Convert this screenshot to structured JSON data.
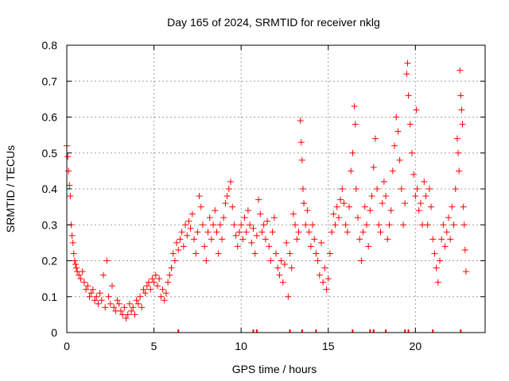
{
  "chart_data": {
    "type": "scatter",
    "title": "Day 165 of 2024, SRMTID for receiver nklg",
    "xlabel": "GPS time / hours",
    "ylabel": "SRMTID / TECUs",
    "xlim": [
      0,
      24
    ],
    "ylim": [
      0,
      0.8
    ],
    "x_ticks": [
      0,
      5,
      10,
      15,
      20
    ],
    "x_tick_labels": [
      "0",
      "5",
      "10",
      "15",
      "20"
    ],
    "y_ticks": [
      0,
      0.1,
      0.2,
      0.3,
      0.4,
      0.5,
      0.6,
      0.7,
      0.8
    ],
    "y_tick_labels": [
      "0",
      "0.1",
      "0.2",
      "0.3",
      "0.4",
      "0.5",
      "0.6",
      "0.7",
      "0.8"
    ],
    "grid": true,
    "marker": "+",
    "color": "#ff0000",
    "series": [
      {
        "name": "SRMTID",
        "points": [
          [
            0.0,
            0.52
          ],
          [
            0.05,
            0.49
          ],
          [
            0.1,
            0.45
          ],
          [
            0.15,
            0.41
          ],
          [
            0.2,
            0.38
          ],
          [
            0.25,
            0.3
          ],
          [
            0.3,
            0.27
          ],
          [
            0.35,
            0.25
          ],
          [
            0.4,
            0.22
          ],
          [
            0.45,
            0.2
          ],
          [
            0.5,
            0.19
          ],
          [
            0.55,
            0.18
          ],
          [
            0.6,
            0.17
          ],
          [
            0.7,
            0.16
          ],
          [
            0.8,
            0.15
          ],
          [
            0.9,
            0.17
          ],
          [
            1.0,
            0.14
          ],
          [
            1.1,
            0.12
          ],
          [
            1.2,
            0.13
          ],
          [
            1.3,
            0.1
          ],
          [
            1.4,
            0.11
          ],
          [
            1.5,
            0.12
          ],
          [
            1.6,
            0.09
          ],
          [
            1.7,
            0.1
          ],
          [
            1.8,
            0.08
          ],
          [
            1.9,
            0.11
          ],
          [
            2.0,
            0.09
          ],
          [
            2.1,
            0.16
          ],
          [
            2.2,
            0.07
          ],
          [
            2.3,
            0.2
          ],
          [
            2.4,
            0.1
          ],
          [
            2.5,
            0.08
          ],
          [
            2.6,
            0.13
          ],
          [
            2.7,
            0.07
          ],
          [
            2.8,
            0.06
          ],
          [
            2.9,
            0.09
          ],
          [
            3.0,
            0.08
          ],
          [
            3.1,
            0.06
          ],
          [
            3.2,
            0.05
          ],
          [
            3.3,
            0.07
          ],
          [
            3.4,
            0.04
          ],
          [
            3.5,
            0.05
          ],
          [
            3.6,
            0.08
          ],
          [
            3.7,
            0.06
          ],
          [
            3.8,
            0.07
          ],
          [
            3.9,
            0.05
          ],
          [
            4.0,
            0.09
          ],
          [
            4.1,
            0.08
          ],
          [
            4.2,
            0.1
          ],
          [
            4.3,
            0.07
          ],
          [
            4.4,
            0.12
          ],
          [
            4.5,
            0.11
          ],
          [
            4.6,
            0.13
          ],
          [
            4.7,
            0.14
          ],
          [
            4.8,
            0.12
          ],
          [
            4.9,
            0.15
          ],
          [
            5.0,
            0.14
          ],
          [
            5.1,
            0.16
          ],
          [
            5.2,
            0.13
          ],
          [
            5.3,
            0.15
          ],
          [
            5.4,
            0.1
          ],
          [
            5.5,
            0.12
          ],
          [
            5.6,
            0.09
          ],
          [
            5.7,
            0.11
          ],
          [
            5.8,
            0.14
          ],
          [
            5.9,
            0.16
          ],
          [
            6.0,
            0.18
          ],
          [
            6.1,
            0.22
          ],
          [
            6.2,
            0.2
          ],
          [
            6.3,
            0.25
          ],
          [
            6.4,
            0.23
          ],
          [
            6.5,
            0.26
          ],
          [
            6.6,
            0.28
          ],
          [
            6.7,
            0.24
          ],
          [
            6.8,
            0.3
          ],
          [
            6.9,
            0.27
          ],
          [
            7.0,
            0.31
          ],
          [
            7.1,
            0.29
          ],
          [
            7.2,
            0.33
          ],
          [
            7.3,
            0.26
          ],
          [
            7.4,
            0.22
          ],
          [
            7.5,
            0.28
          ],
          [
            7.6,
            0.38
          ],
          [
            7.7,
            0.35
          ],
          [
            7.8,
            0.3
          ],
          [
            7.9,
            0.24
          ],
          [
            8.0,
            0.2
          ],
          [
            8.1,
            0.28
          ],
          [
            8.2,
            0.32
          ],
          [
            8.3,
            0.26
          ],
          [
            8.4,
            0.3
          ],
          [
            8.5,
            0.34
          ],
          [
            8.6,
            0.28
          ],
          [
            8.7,
            0.22
          ],
          [
            8.8,
            0.3
          ],
          [
            8.9,
            0.26
          ],
          [
            9.0,
            0.32
          ],
          [
            9.1,
            0.36
          ],
          [
            9.2,
            0.38
          ],
          [
            9.3,
            0.4
          ],
          [
            9.4,
            0.42
          ],
          [
            9.5,
            0.35
          ],
          [
            9.6,
            0.3
          ],
          [
            9.7,
            0.27
          ],
          [
            9.8,
            0.24
          ],
          [
            9.9,
            0.28
          ],
          [
            10.0,
            0.3
          ],
          [
            10.1,
            0.26
          ],
          [
            10.2,
            0.32
          ],
          [
            10.3,
            0.28
          ],
          [
            10.4,
            0.34
          ],
          [
            10.5,
            0.3
          ],
          [
            10.6,
            0.25
          ],
          [
            10.7,
            0.29
          ],
          [
            10.8,
            0.22
          ],
          [
            10.9,
            0.27
          ],
          [
            11.0,
            0.37
          ],
          [
            11.1,
            0.33
          ],
          [
            11.2,
            0.28
          ],
          [
            11.3,
            0.3
          ],
          [
            11.4,
            0.26
          ],
          [
            11.5,
            0.31
          ],
          [
            11.6,
            0.24
          ],
          [
            11.7,
            0.2
          ],
          [
            11.8,
            0.28
          ],
          [
            11.9,
            0.32
          ],
          [
            12.0,
            0.22
          ],
          [
            12.1,
            0.18
          ],
          [
            12.2,
            0.16
          ],
          [
            12.3,
            0.2
          ],
          [
            12.4,
            0.14
          ],
          [
            12.5,
            0.19
          ],
          [
            12.6,
            0.25
          ],
          [
            12.7,
            0.1
          ],
          [
            12.8,
            0.22
          ],
          [
            12.9,
            0.18
          ],
          [
            13.0,
            0.33
          ],
          [
            13.1,
            0.3
          ],
          [
            13.2,
            0.26
          ],
          [
            13.3,
            0.28
          ],
          [
            13.4,
            0.59
          ],
          [
            13.45,
            0.53
          ],
          [
            13.5,
            0.48
          ],
          [
            13.55,
            0.4
          ],
          [
            13.6,
            0.36
          ],
          [
            13.7,
            0.3
          ],
          [
            13.8,
            0.34
          ],
          [
            13.9,
            0.28
          ],
          [
            14.0,
            0.24
          ],
          [
            14.1,
            0.3
          ],
          [
            14.2,
            0.26
          ],
          [
            14.3,
            0.22
          ],
          [
            14.4,
            0.2
          ],
          [
            14.5,
            0.16
          ],
          [
            14.6,
            0.25
          ],
          [
            14.7,
            0.14
          ],
          [
            14.8,
            0.18
          ],
          [
            14.9,
            0.12
          ],
          [
            15.0,
            0.15
          ],
          [
            15.1,
            0.22
          ],
          [
            15.2,
            0.28
          ],
          [
            15.3,
            0.33
          ],
          [
            15.4,
            0.3
          ],
          [
            15.5,
            0.35
          ],
          [
            15.6,
            0.32
          ],
          [
            15.7,
            0.37
          ],
          [
            15.8,
            0.4
          ],
          [
            15.9,
            0.36
          ],
          [
            16.0,
            0.3
          ],
          [
            16.1,
            0.28
          ],
          [
            16.2,
            0.35
          ],
          [
            16.3,
            0.45
          ],
          [
            16.4,
            0.5
          ],
          [
            16.5,
            0.63
          ],
          [
            16.55,
            0.58
          ],
          [
            16.6,
            0.4
          ],
          [
            16.7,
            0.32
          ],
          [
            16.8,
            0.26
          ],
          [
            16.9,
            0.2
          ],
          [
            17.0,
            0.28
          ],
          [
            17.1,
            0.35
          ],
          [
            17.2,
            0.3
          ],
          [
            17.3,
            0.24
          ],
          [
            17.4,
            0.34
          ],
          [
            17.5,
            0.38
          ],
          [
            17.6,
            0.46
          ],
          [
            17.7,
            0.54
          ],
          [
            17.8,
            0.4
          ],
          [
            17.9,
            0.3
          ],
          [
            18.0,
            0.28
          ],
          [
            18.1,
            0.36
          ],
          [
            18.2,
            0.42
          ],
          [
            18.3,
            0.38
          ],
          [
            18.4,
            0.26
          ],
          [
            18.5,
            0.3
          ],
          [
            18.6,
            0.34
          ],
          [
            18.7,
            0.45
          ],
          [
            18.8,
            0.52
          ],
          [
            18.9,
            0.6
          ],
          [
            19.0,
            0.56
          ],
          [
            19.1,
            0.48
          ],
          [
            19.2,
            0.4
          ],
          [
            19.3,
            0.3
          ],
          [
            19.4,
            0.36
          ],
          [
            19.5,
            0.72
          ],
          [
            19.55,
            0.75
          ],
          [
            19.6,
            0.66
          ],
          [
            19.7,
            0.58
          ],
          [
            19.8,
            0.5
          ],
          [
            19.9,
            0.44
          ],
          [
            20.0,
            0.38
          ],
          [
            20.05,
            0.62
          ],
          [
            20.1,
            0.4
          ],
          [
            20.2,
            0.34
          ],
          [
            20.3,
            0.36
          ],
          [
            20.4,
            0.3
          ],
          [
            20.5,
            0.42
          ],
          [
            20.6,
            0.38
          ],
          [
            20.7,
            0.3
          ],
          [
            20.8,
            0.4
          ],
          [
            20.9,
            0.35
          ],
          [
            21.0,
            0.26
          ],
          [
            21.1,
            0.22
          ],
          [
            21.2,
            0.18
          ],
          [
            21.3,
            0.14
          ],
          [
            21.4,
            0.2
          ],
          [
            21.5,
            0.26
          ],
          [
            21.6,
            0.3
          ],
          [
            21.7,
            0.24
          ],
          [
            21.8,
            0.28
          ],
          [
            21.9,
            0.32
          ],
          [
            22.0,
            0.26
          ],
          [
            22.1,
            0.35
          ],
          [
            22.2,
            0.3
          ],
          [
            22.3,
            0.4
          ],
          [
            22.4,
            0.54
          ],
          [
            22.45,
            0.5
          ],
          [
            22.5,
            0.45
          ],
          [
            22.55,
            0.73
          ],
          [
            22.6,
            0.66
          ],
          [
            22.65,
            0.62
          ],
          [
            22.7,
            0.58
          ],
          [
            22.75,
            0.35
          ],
          [
            22.8,
            0.3
          ],
          [
            22.85,
            0.23
          ],
          [
            22.9,
            0.17
          ]
        ]
      }
    ],
    "zero_marks_x": [
      6.4,
      10.7,
      10.9,
      12.8,
      13.5,
      14.3,
      16.4,
      17.4,
      17.6,
      18.3,
      19.4,
      19.6,
      21.0,
      22.6
    ]
  }
}
